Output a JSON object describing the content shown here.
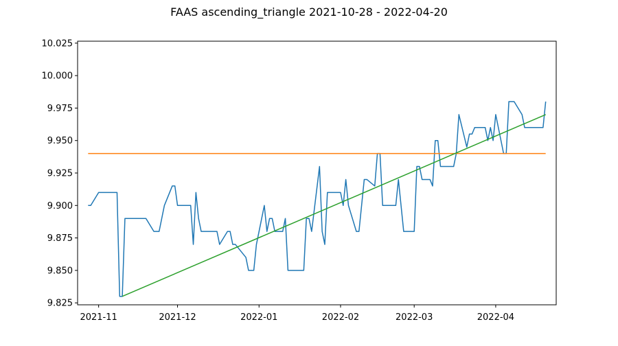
{
  "chart_data": {
    "type": "line",
    "title": "FAAS ascending_triangle 2021-10-28 - 2022-04-20",
    "xlabel": "",
    "ylabel": "",
    "x_range": [
      "2021-10-24",
      "2022-04-24"
    ],
    "ylim": [
      9.8235,
      10.0265
    ],
    "yticks": [
      "9.825",
      "9.850",
      "9.875",
      "9.900",
      "9.925",
      "9.950",
      "9.975",
      "10.000",
      "10.025"
    ],
    "xticks": [
      {
        "date": "2021-11-01",
        "label": "2021-11"
      },
      {
        "date": "2021-12-01",
        "label": "2021-12"
      },
      {
        "date": "2022-01-01",
        "label": "2022-01"
      },
      {
        "date": "2022-02-01",
        "label": "2022-02"
      },
      {
        "date": "2022-03-01",
        "label": "2022-03"
      },
      {
        "date": "2022-04-01",
        "label": "2022-04"
      }
    ],
    "grid": false,
    "colors": {
      "price": "#1f77b4",
      "resistance": "#ff7f0e",
      "support": "#2ca02c"
    },
    "series": [
      {
        "key": "price",
        "x": [
          "2021-10-28",
          "2021-10-29",
          "2021-11-01",
          "2021-11-02",
          "2021-11-03",
          "2021-11-04",
          "2021-11-05",
          "2021-11-08",
          "2021-11-09",
          "2021-11-10",
          "2021-11-11",
          "2021-11-12",
          "2021-11-15",
          "2021-11-16",
          "2021-11-17",
          "2021-11-18",
          "2021-11-19",
          "2021-11-22",
          "2021-11-23",
          "2021-11-24",
          "2021-11-26",
          "2021-11-29",
          "2021-11-30",
          "2021-12-01",
          "2021-12-02",
          "2021-12-03",
          "2021-12-06",
          "2021-12-07",
          "2021-12-08",
          "2021-12-09",
          "2021-12-10",
          "2021-12-13",
          "2021-12-14",
          "2021-12-15",
          "2021-12-16",
          "2021-12-17",
          "2021-12-20",
          "2021-12-21",
          "2021-12-22",
          "2021-12-23",
          "2021-12-27",
          "2021-12-28",
          "2021-12-29",
          "2021-12-30",
          "2021-12-31",
          "2022-01-03",
          "2022-01-04",
          "2022-01-05",
          "2022-01-06",
          "2022-01-07",
          "2022-01-10",
          "2022-01-11",
          "2022-01-12",
          "2022-01-13",
          "2022-01-14",
          "2022-01-18",
          "2022-01-19",
          "2022-01-20",
          "2022-01-21",
          "2022-01-24",
          "2022-01-25",
          "2022-01-26",
          "2022-01-27",
          "2022-01-28",
          "2022-01-31",
          "2022-02-01",
          "2022-02-02",
          "2022-02-03",
          "2022-02-04",
          "2022-02-07",
          "2022-02-08",
          "2022-02-09",
          "2022-02-10",
          "2022-02-11",
          "2022-02-14",
          "2022-02-15",
          "2022-02-16",
          "2022-02-17",
          "2022-02-18",
          "2022-02-22",
          "2022-02-23",
          "2022-02-24",
          "2022-02-25",
          "2022-02-28",
          "2022-03-01",
          "2022-03-02",
          "2022-03-03",
          "2022-03-04",
          "2022-03-07",
          "2022-03-08",
          "2022-03-09",
          "2022-03-10",
          "2022-03-11",
          "2022-03-14",
          "2022-03-15",
          "2022-03-16",
          "2022-03-17",
          "2022-03-18",
          "2022-03-21",
          "2022-03-22",
          "2022-03-23",
          "2022-03-24",
          "2022-03-25",
          "2022-03-28",
          "2022-03-29",
          "2022-03-30",
          "2022-03-31",
          "2022-04-01",
          "2022-04-04",
          "2022-04-05",
          "2022-04-06",
          "2022-04-07",
          "2022-04-08",
          "2022-04-11",
          "2022-04-12",
          "2022-04-13",
          "2022-04-14",
          "2022-04-18",
          "2022-04-19",
          "2022-04-20"
        ],
        "y": [
          9.9,
          9.9,
          9.91,
          9.91,
          9.91,
          9.91,
          9.91,
          9.91,
          9.83,
          9.83,
          9.89,
          9.89,
          9.89,
          9.89,
          9.89,
          9.89,
          9.89,
          9.88,
          9.88,
          9.88,
          9.9,
          9.915,
          9.915,
          9.9,
          9.9,
          9.9,
          9.9,
          9.87,
          9.91,
          9.89,
          9.88,
          9.88,
          9.88,
          9.88,
          9.88,
          9.87,
          9.88,
          9.88,
          9.87,
          9.87,
          9.86,
          9.85,
          9.85,
          9.85,
          9.87,
          9.9,
          9.88,
          9.89,
          9.89,
          9.88,
          9.88,
          9.89,
          9.85,
          9.85,
          9.85,
          9.85,
          9.89,
          9.89,
          9.88,
          9.93,
          9.88,
          9.87,
          9.91,
          9.91,
          9.91,
          9.91,
          9.9,
          9.92,
          9.9,
          9.88,
          9.88,
          9.9,
          9.92,
          9.92,
          9.915,
          9.94,
          9.94,
          9.9,
          9.9,
          9.9,
          9.92,
          9.9,
          9.88,
          9.88,
          9.88,
          9.93,
          9.93,
          9.92,
          9.92,
          9.915,
          9.95,
          9.95,
          9.93,
          9.93,
          9.93,
          9.93,
          9.94,
          9.97,
          9.945,
          9.955,
          9.955,
          9.96,
          9.96,
          9.96,
          9.95,
          9.96,
          9.95,
          9.97,
          9.94,
          9.94,
          9.98,
          9.98,
          9.98,
          9.97,
          9.96,
          9.96,
          9.96,
          9.96,
          9.96,
          9.98
        ]
      },
      {
        "key": "resistance",
        "x": [
          "2021-10-28",
          "2022-04-20"
        ],
        "y": [
          9.94,
          9.94
        ]
      },
      {
        "key": "support",
        "x": [
          "2021-11-10",
          "2022-04-20"
        ],
        "y": [
          9.83,
          9.97
        ]
      }
    ]
  }
}
